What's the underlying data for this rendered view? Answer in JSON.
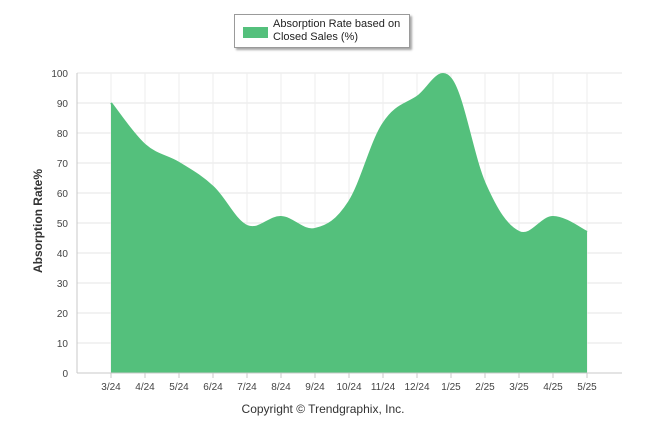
{
  "chart_data": {
    "type": "area",
    "title": "",
    "xlabel": "",
    "ylabel": "Absorption Rate%",
    "categories": [
      "3/24",
      "4/24",
      "5/24",
      "6/24",
      "7/24",
      "8/24",
      "9/24",
      "10/24",
      "11/24",
      "12/24",
      "1/25",
      "2/25",
      "3/25",
      "4/25",
      "5/25"
    ],
    "series": [
      {
        "name": "Absorption Rate based on Closed Sales (%)",
        "values": [
          90,
          76,
          70,
          62,
          49,
          52,
          48,
          57,
          83,
          92,
          98,
          63,
          47,
          52,
          47
        ]
      }
    ],
    "ylim": [
      0,
      100
    ],
    "yticks": [
      0,
      10,
      20,
      30,
      40,
      50,
      60,
      70,
      80,
      90,
      100
    ],
    "grid": true,
    "legend_position": "top-center",
    "color": "#54c07c",
    "footer": "Copyright © Trendgraphix, Inc."
  }
}
